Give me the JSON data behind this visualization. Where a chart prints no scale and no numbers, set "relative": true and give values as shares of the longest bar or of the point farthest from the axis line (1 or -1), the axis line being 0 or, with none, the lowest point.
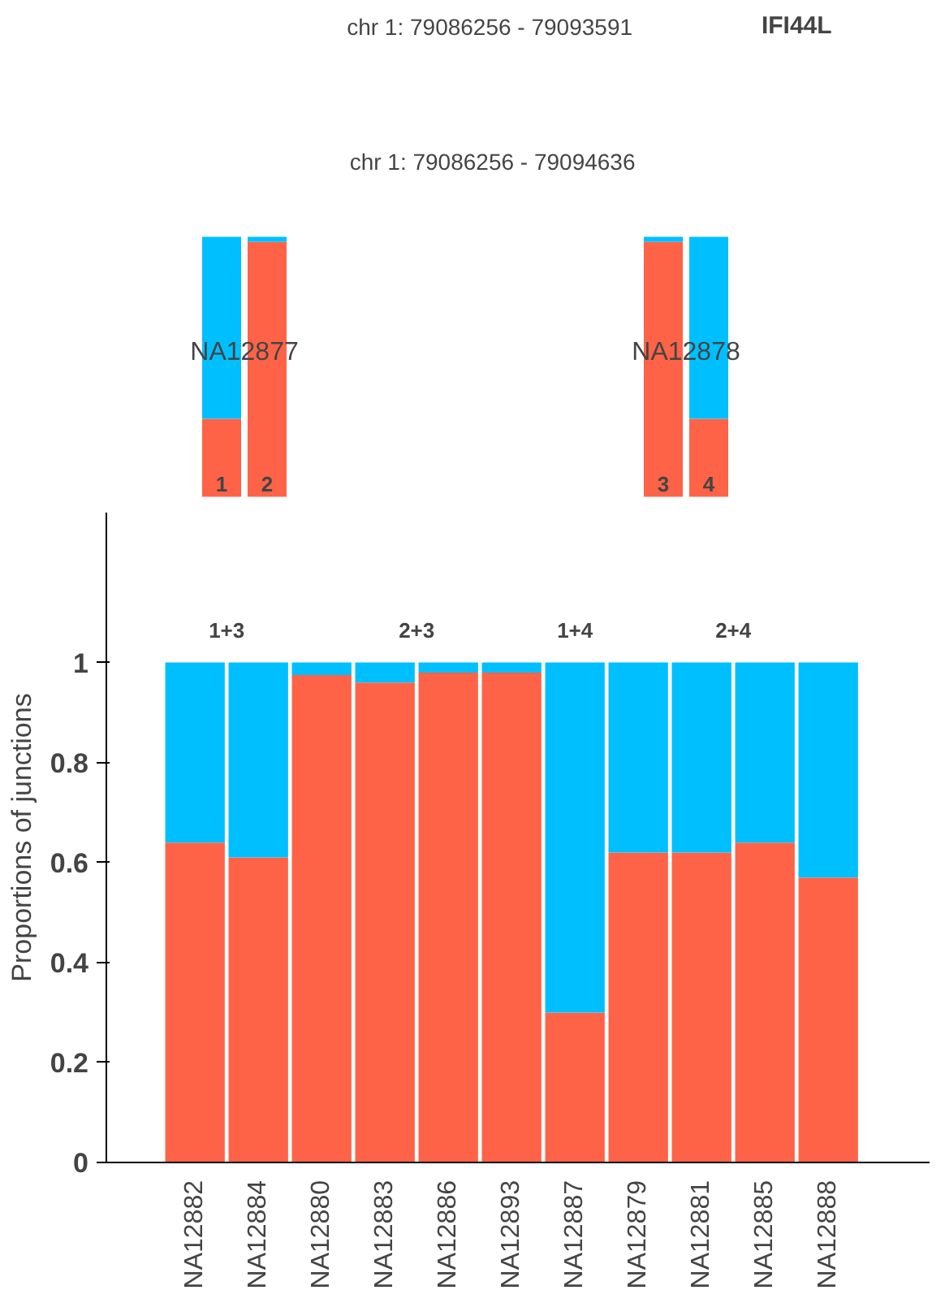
{
  "chart_data": [
    {
      "type": "other",
      "annotations": [
        "chr 1: 79086256 - 79093591",
        "chr 1: 79086256 - 79094636",
        "IFI44L"
      ]
    },
    {
      "type": "bar",
      "stacked": true,
      "relative": true,
      "categories": [
        "1",
        "2"
      ],
      "series": [
        {
          "color": "#ff6347",
          "values": [
            0.3,
            0.98
          ]
        },
        {
          "color": "#00bfff",
          "values": [
            0.7,
            0.02
          ]
        }
      ],
      "annotations": [
        "NA12877"
      ]
    },
    {
      "type": "bar",
      "stacked": true,
      "relative": true,
      "categories": [
        "3",
        "4"
      ],
      "series": [
        {
          "color": "#ff6347",
          "values": [
            0.98,
            0.3
          ]
        },
        {
          "color": "#00bfff",
          "values": [
            0.02,
            0.7
          ]
        }
      ],
      "annotations": [
        "NA12878"
      ]
    },
    {
      "type": "bar",
      "stacked": true,
      "ylabel": "Proportions of junctions",
      "categories": [
        "NA12882",
        "NA12884",
        "NA12880",
        "NA12883",
        "NA12886",
        "NA12893",
        "NA12887",
        "NA12879",
        "NA12881",
        "NA12885",
        "NA12888"
      ],
      "series": [
        {
          "color": "#ff6347",
          "values": [
            0.64,
            0.61,
            0.975,
            0.96,
            0.98,
            0.98,
            0.3,
            0.62,
            0.62,
            0.64,
            0.57
          ]
        },
        {
          "color": "#00bfff",
          "values": [
            0.36,
            0.39,
            0.025,
            0.04,
            0.02,
            0.02,
            0.7,
            0.38,
            0.38,
            0.36,
            0.43
          ]
        }
      ],
      "ylim": [
        0,
        1.3
      ],
      "yticks": [
        0,
        0.2,
        0.4,
        0.6,
        0.8,
        1
      ],
      "grid": false,
      "annotations": [
        "1+3",
        "2+3",
        "1+4",
        "2+4"
      ]
    }
  ]
}
